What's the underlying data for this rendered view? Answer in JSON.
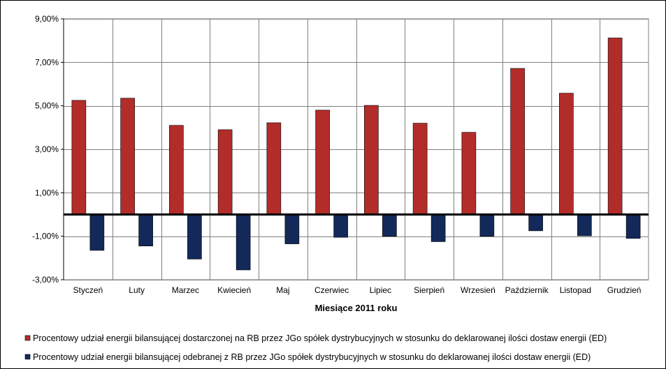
{
  "chart_data": {
    "type": "bar",
    "xlabel": "Miesiące 2011  roku",
    "ylabel": "",
    "ylim": [
      -3,
      9
    ],
    "y_ticks": [
      {
        "value": 9,
        "label": "9,00%"
      },
      {
        "value": 7,
        "label": "7,00%"
      },
      {
        "value": 5,
        "label": "5,00%"
      },
      {
        "value": 3,
        "label": "3,00%"
      },
      {
        "value": 1,
        "label": "1,00%"
      },
      {
        "value": -1,
        "label": "-1,00%"
      },
      {
        "value": -3,
        "label": "-3,00%"
      }
    ],
    "categories": [
      "Styczeń",
      "Luty",
      "Marzec",
      "Kwiecień",
      "Maj",
      "Czerwiec",
      "Lipiec",
      "Sierpień",
      "Wrzesień",
      "Październik",
      "Listopad",
      "Grudzień"
    ],
    "series": [
      {
        "name": "Procentowy udział energii bilansującej dostarczonej na RB przez JGo spółek dystrybucyjnych w stosunku do deklarowanej ilości dostaw energii (ED)",
        "color": "#b22c2a",
        "values": [
          5.25,
          5.35,
          4.1,
          3.9,
          4.22,
          4.8,
          5.02,
          4.2,
          3.78,
          6.72,
          5.58,
          8.12
        ]
      },
      {
        "name": "Procentowy udział energii bilansującej odebranej z RB przez JGo spółek dystrybucyjnych w stosunku do deklarowanej ilości dostaw energii (ED)",
        "color": "#13295a",
        "values": [
          -1.65,
          -1.45,
          -2.05,
          -2.55,
          -1.35,
          -1.05,
          -1.0,
          -1.25,
          -1.0,
          -0.75,
          -0.98,
          -1.1
        ]
      }
    ],
    "grid": true,
    "legend_position": "bottom"
  }
}
